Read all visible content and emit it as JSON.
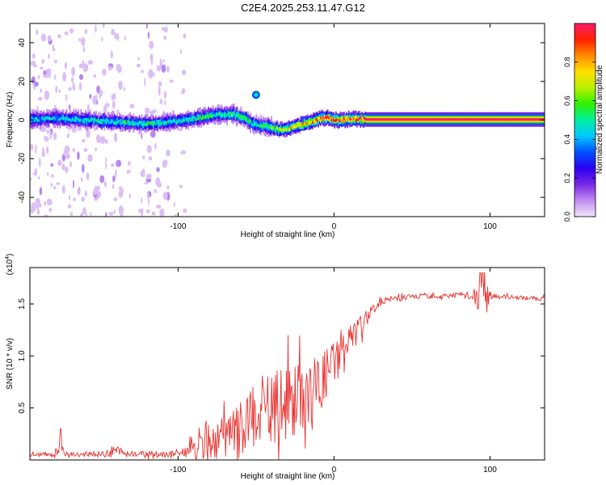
{
  "title": "C2E4.2025.253.11.47.G12",
  "colors": {
    "frame": "#000000",
    "line": "#e8312f",
    "colorbar": [
      "#f3e6fb",
      "#c08cf0",
      "#7a28e6",
      "#2a00f0",
      "#0050ff",
      "#00c8ff",
      "#00f0a0",
      "#30f000",
      "#b8f000",
      "#ffe000",
      "#ff8a00",
      "#ff2000",
      "#ff1c6a"
    ]
  },
  "chart_data": [
    {
      "type": "heatmap",
      "title": "C2E4.2025.253.11.47.G12",
      "xlabel": "Height of straight line (km)",
      "ylabel": "Frequency (Hz)",
      "xlim": [
        -195,
        135
      ],
      "ylim": [
        -50,
        50
      ],
      "xticks": [
        -100,
        0,
        100
      ],
      "xtick_labels": [
        "-100",
        "0",
        "100"
      ],
      "yticks": [
        -40,
        -20,
        0,
        20,
        40
      ],
      "ytick_labels": [
        "-40",
        "-20",
        "0",
        "20",
        "40"
      ],
      "colorbar": {
        "label": "Normalized spectral amplitude",
        "range": [
          0,
          1
        ],
        "ticks": [
          0,
          0.2,
          0.4,
          0.6,
          0.8
        ],
        "tick_labels": [
          "0.0",
          "0.2",
          "0.4",
          "0.6",
          "0.8"
        ]
      },
      "ridge": {
        "x": [
          -195,
          -180,
          -160,
          -140,
          -120,
          -105,
          -95,
          -85,
          -75,
          -65,
          -58,
          -52,
          -48,
          -44,
          -40,
          -36,
          -32,
          -28,
          -24,
          -20,
          -16,
          -12,
          -8,
          -4,
          0,
          5,
          10,
          15,
          20,
          40,
          60,
          80,
          100,
          120,
          135
        ],
        "y": [
          0,
          1,
          0,
          -1,
          -2,
          -1,
          0,
          1.5,
          3,
          3,
          1,
          -2,
          -3,
          -3,
          -4,
          -5,
          -5,
          -4,
          -3,
          -2,
          -1,
          0,
          1,
          1,
          0,
          0,
          0.5,
          0.5,
          0.3,
          0.3,
          0.3,
          0.3,
          0.3,
          0.3,
          0.3
        ],
        "amplitude": [
          0.45,
          0.45,
          0.5,
          0.5,
          0.55,
          0.5,
          0.5,
          0.55,
          0.55,
          0.6,
          0.6,
          0.55,
          0.55,
          0.6,
          0.65,
          0.7,
          0.75,
          0.8,
          0.8,
          0.85,
          0.85,
          0.9,
          0.95,
          0.95,
          1.0,
          1.0,
          1.0,
          1.0,
          1.0,
          1.0,
          1.0,
          1.0,
          1.0,
          1.0,
          1.0
        ]
      }
    },
    {
      "type": "line",
      "xlabel": "Height of straight line (km)",
      "ylabel": "SNR (10 * v/v)",
      "y_scale_label": "(x10",
      "y_scale_exp": "4",
      "y_scale_close": ")",
      "xlim": [
        -195,
        135
      ],
      "ylim": [
        0,
        1.85
      ],
      "xticks": [
        -100,
        0,
        100
      ],
      "xtick_labels": [
        "-100",
        "0",
        "100"
      ],
      "yticks": [
        0.5,
        1.0,
        1.5
      ],
      "ytick_labels": [
        "0.5",
        "1.0",
        "1.5"
      ],
      "series": [
        {
          "name": "SNR",
          "x": [
            -195,
            -180,
            -176,
            -172,
            -160,
            -145,
            -140,
            -135,
            -130,
            -120,
            -110,
            -100,
            -90,
            -80,
            -70,
            -60,
            -50,
            -40,
            -30,
            -20,
            -10,
            0,
            10,
            20,
            25,
            30,
            40,
            50,
            60,
            70,
            80,
            90,
            95,
            100,
            110,
            120,
            135
          ],
          "mean": [
            0.05,
            0.05,
            0.12,
            0.06,
            0.05,
            0.06,
            0.1,
            0.06,
            0.06,
            0.06,
            0.05,
            0.07,
            0.1,
            0.15,
            0.22,
            0.3,
            0.4,
            0.48,
            0.55,
            0.65,
            0.75,
            0.95,
            1.15,
            1.35,
            1.45,
            1.52,
            1.56,
            1.57,
            1.58,
            1.58,
            1.59,
            1.57,
            1.5,
            1.58,
            1.57,
            1.56,
            1.55
          ],
          "spread": [
            0.03,
            0.03,
            0.1,
            0.03,
            0.03,
            0.05,
            0.12,
            0.04,
            0.04,
            0.04,
            0.04,
            0.06,
            0.12,
            0.2,
            0.3,
            0.4,
            0.5,
            0.6,
            0.55,
            0.5,
            0.4,
            0.35,
            0.25,
            0.12,
            0.06,
            0.05,
            0.05,
            0.04,
            0.04,
            0.04,
            0.04,
            0.08,
            0.4,
            0.06,
            0.03,
            0.03,
            0.03
          ]
        }
      ]
    }
  ]
}
